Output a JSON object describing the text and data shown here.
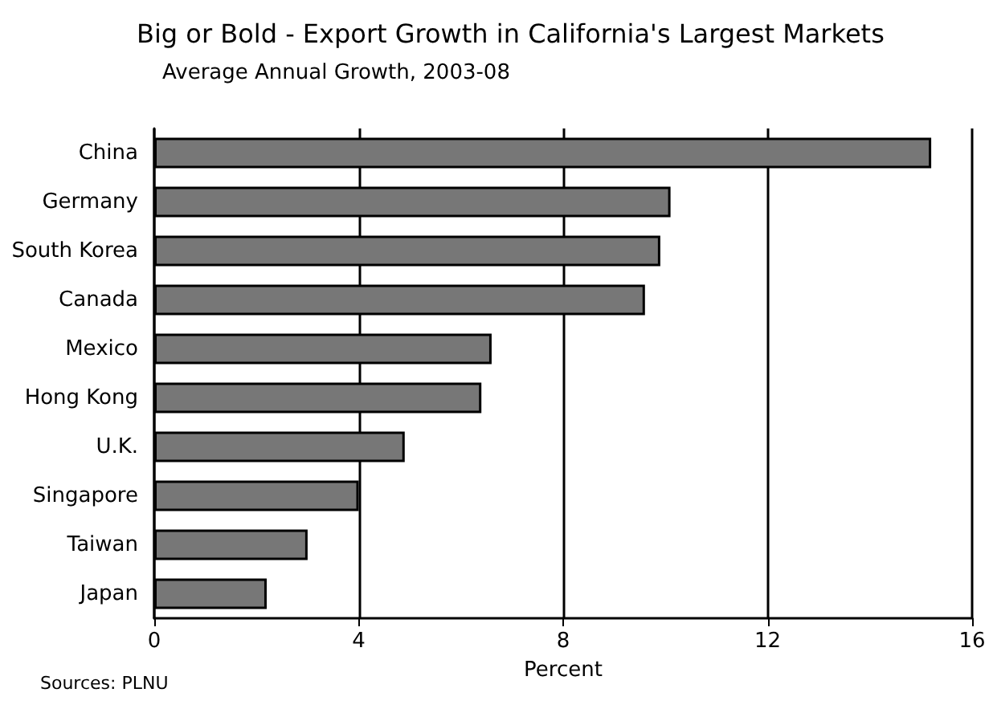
{
  "chart_data": {
    "type": "bar",
    "orientation": "horizontal",
    "title": "Big or Bold - Export Growth in California's Largest Markets",
    "subtitle": "Average Annual Growth, 2003-08",
    "xlabel": "Percent",
    "categories": [
      "China",
      "Germany",
      "South Korea",
      "Canada",
      "Mexico",
      "Hong Kong",
      "U.K.",
      "Singapore",
      "Taiwan",
      "Japan"
    ],
    "values": [
      15.2,
      10.1,
      9.9,
      9.6,
      6.6,
      6.4,
      4.9,
      4.0,
      3.0,
      2.2
    ],
    "color": "#777777",
    "xlim": [
      0,
      16
    ],
    "xticks": [
      0,
      4,
      8,
      12,
      16
    ],
    "grid": "x",
    "annotations": [
      "Sources: PLNU"
    ]
  }
}
